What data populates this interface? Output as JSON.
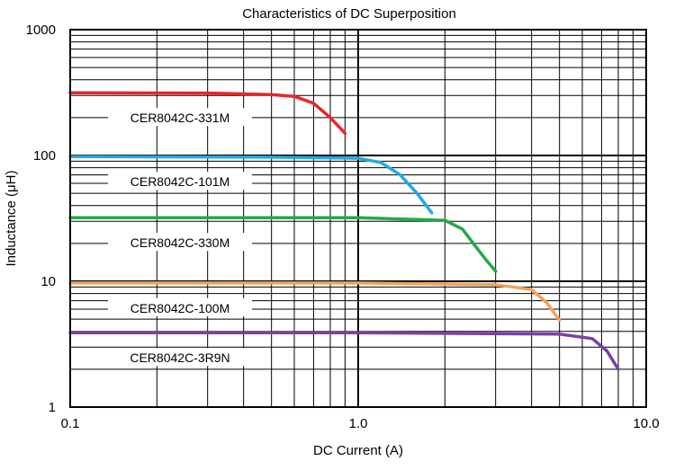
{
  "chart_data": {
    "type": "line",
    "title": "Characteristics of DC Superposition",
    "xlabel": "DC Current (A)",
    "ylabel": "Inductance (μH)",
    "x_scale": "log",
    "y_scale": "log",
    "xlim": [
      0.1,
      10
    ],
    "ylim": [
      1,
      1000
    ],
    "x_ticks": [
      {
        "value": 0.1,
        "label": "0.1"
      },
      {
        "value": 1,
        "label": "1.0"
      },
      {
        "value": 10,
        "label": "10.0"
      }
    ],
    "y_ticks": [
      {
        "value": 1,
        "label": "1"
      },
      {
        "value": 10,
        "label": "10"
      },
      {
        "value": 100,
        "label": "100"
      },
      {
        "value": 1000,
        "label": "1000"
      }
    ],
    "grid": true,
    "series": [
      {
        "name": "CER8042C-331M",
        "color": "#e8262a",
        "x": [
          0.1,
          0.3,
          0.5,
          0.6,
          0.7,
          0.8,
          0.9
        ],
        "y": [
          315,
          313,
          305,
          295,
          260,
          200,
          150
        ]
      },
      {
        "name": "CER8042C-101M",
        "color": "#22a9e6",
        "x": [
          0.1,
          0.5,
          1.0,
          1.2,
          1.4,
          1.6,
          1.8
        ],
        "y": [
          98,
          97,
          95,
          88,
          70,
          50,
          35
        ]
      },
      {
        "name": "CER8042C-330M",
        "color": "#24a84a",
        "x": [
          0.1,
          1.0,
          2.0,
          2.3,
          2.6,
          2.8,
          3.0
        ],
        "y": [
          32,
          32,
          30.5,
          26,
          18,
          14.5,
          12
        ]
      },
      {
        "name": "CER8042C-100M",
        "color": "#f4a259",
        "x": [
          0.1,
          1.0,
          3.0,
          4.0,
          4.5,
          5.0
        ],
        "y": [
          9.7,
          9.7,
          9.4,
          8.6,
          6.8,
          4.9
        ]
      },
      {
        "name": "CER8042C-3R9N",
        "color": "#7b3fa7",
        "x": [
          0.1,
          1.0,
          5.0,
          6.5,
          7.3,
          8.0
        ],
        "y": [
          3.9,
          3.9,
          3.8,
          3.5,
          2.8,
          2.0
        ]
      }
    ]
  }
}
